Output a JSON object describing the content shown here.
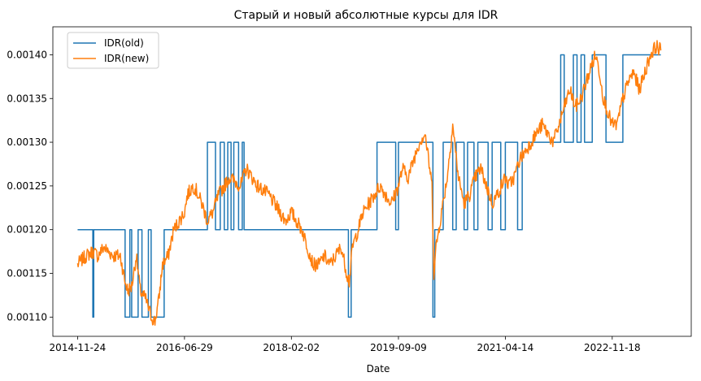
{
  "chart_data": {
    "type": "line",
    "title": "Старый и новый абсолютные курсы для IDR",
    "xlabel": "Date",
    "ylabel": "",
    "x_ticks": [
      "2014-11-24",
      "2016-06-29",
      "2018-02-02",
      "2019-09-09",
      "2021-04-14",
      "2022-11-18"
    ],
    "y_ticks": [
      "0.00110",
      "0.00115",
      "0.00120",
      "0.00125",
      "0.00130",
      "0.00135",
      "0.00140"
    ],
    "xlim": [
      "2014-07-12",
      "2024-01-23"
    ],
    "ylim": [
      0.001078,
      0.001432
    ],
    "legend_position": "upper left",
    "grid": false,
    "series": [
      {
        "name": "IDR(old)",
        "color": "#1f77b4",
        "step": true,
        "points": [
          [
            "2014-11-24",
            0.0012
          ],
          [
            "2015-02-15",
            0.0012
          ],
          [
            "2015-02-15",
            0.0011
          ],
          [
            "2015-02-20",
            0.0011
          ],
          [
            "2015-02-20",
            0.0012
          ],
          [
            "2015-08-10",
            0.0012
          ],
          [
            "2015-08-10",
            0.0011
          ],
          [
            "2015-09-05",
            0.0011
          ],
          [
            "2015-09-05",
            0.0012
          ],
          [
            "2015-09-15",
            0.0012
          ],
          [
            "2015-09-15",
            0.0011
          ],
          [
            "2015-10-20",
            0.0011
          ],
          [
            "2015-10-20",
            0.0012
          ],
          [
            "2015-11-10",
            0.0012
          ],
          [
            "2015-11-10",
            0.0011
          ],
          [
            "2015-12-15",
            0.0011
          ],
          [
            "2015-12-15",
            0.0012
          ],
          [
            "2015-12-30",
            0.0012
          ],
          [
            "2015-12-30",
            0.0011
          ],
          [
            "2016-03-10",
            0.0011
          ],
          [
            "2016-03-10",
            0.0012
          ],
          [
            "2016-11-01",
            0.0012
          ],
          [
            "2016-11-01",
            0.0013
          ],
          [
            "2016-12-15",
            0.0013
          ],
          [
            "2016-12-15",
            0.0012
          ],
          [
            "2017-01-10",
            0.0012
          ],
          [
            "2017-01-10",
            0.0013
          ],
          [
            "2017-02-01",
            0.0013
          ],
          [
            "2017-02-01",
            0.0012
          ],
          [
            "2017-02-20",
            0.0012
          ],
          [
            "2017-02-20",
            0.0013
          ],
          [
            "2017-03-10",
            0.0013
          ],
          [
            "2017-03-10",
            0.0012
          ],
          [
            "2017-03-25",
            0.0012
          ],
          [
            "2017-03-25",
            0.0013
          ],
          [
            "2017-04-20",
            0.0013
          ],
          [
            "2017-04-20",
            0.0012
          ],
          [
            "2017-05-10",
            0.0012
          ],
          [
            "2017-05-10",
            0.0013
          ],
          [
            "2017-05-20",
            0.0013
          ],
          [
            "2017-05-20",
            0.0012
          ],
          [
            "2018-12-10",
            0.0012
          ],
          [
            "2018-12-10",
            0.0011
          ],
          [
            "2018-12-25",
            0.0011
          ],
          [
            "2018-12-25",
            0.0012
          ],
          [
            "2019-05-15",
            0.0012
          ],
          [
            "2019-05-15",
            0.0013
          ],
          [
            "2019-08-25",
            0.0013
          ],
          [
            "2019-08-25",
            0.0012
          ],
          [
            "2019-09-09",
            0.0012
          ],
          [
            "2019-09-09",
            0.0013
          ],
          [
            "2020-03-15",
            0.0013
          ],
          [
            "2020-03-15",
            0.0011
          ],
          [
            "2020-03-25",
            0.0011
          ],
          [
            "2020-03-25",
            0.0012
          ],
          [
            "2020-05-10",
            0.0012
          ],
          [
            "2020-05-10",
            0.0013
          ],
          [
            "2020-07-01",
            0.0013
          ],
          [
            "2020-07-01",
            0.0012
          ],
          [
            "2020-07-20",
            0.0012
          ],
          [
            "2020-07-20",
            0.0013
          ],
          [
            "2020-09-01",
            0.0013
          ],
          [
            "2020-09-01",
            0.0012
          ],
          [
            "2020-09-20",
            0.0012
          ],
          [
            "2020-09-20",
            0.0013
          ],
          [
            "2020-10-25",
            0.0013
          ],
          [
            "2020-10-25",
            0.0012
          ],
          [
            "2020-11-15",
            0.0012
          ],
          [
            "2020-11-15",
            0.0013
          ],
          [
            "2021-01-10",
            0.0013
          ],
          [
            "2021-01-10",
            0.0012
          ],
          [
            "2021-02-01",
            0.0012
          ],
          [
            "2021-02-01",
            0.0013
          ],
          [
            "2021-03-20",
            0.0013
          ],
          [
            "2021-03-20",
            0.0012
          ],
          [
            "2021-04-14",
            0.0012
          ],
          [
            "2021-04-14",
            0.0013
          ],
          [
            "2021-06-20",
            0.0013
          ],
          [
            "2021-06-20",
            0.0012
          ],
          [
            "2021-07-15",
            0.0012
          ],
          [
            "2021-07-15",
            0.0013
          ],
          [
            "2022-02-10",
            0.0013
          ],
          [
            "2022-02-10",
            0.0014
          ],
          [
            "2022-03-01",
            0.0014
          ],
          [
            "2022-03-01",
            0.0013
          ],
          [
            "2022-04-20",
            0.0013
          ],
          [
            "2022-04-20",
            0.0014
          ],
          [
            "2022-05-10",
            0.0014
          ],
          [
            "2022-05-10",
            0.0013
          ],
          [
            "2022-06-01",
            0.0013
          ],
          [
            "2022-06-01",
            0.0014
          ],
          [
            "2022-06-20",
            0.0014
          ],
          [
            "2022-06-20",
            0.0013
          ],
          [
            "2022-08-01",
            0.0013
          ],
          [
            "2022-08-01",
            0.0014
          ],
          [
            "2022-10-15",
            0.0014
          ],
          [
            "2022-10-15",
            0.0013
          ],
          [
            "2023-01-15",
            0.0013
          ],
          [
            "2023-01-15",
            0.0014
          ],
          [
            "2023-08-10",
            0.0014
          ]
        ]
      },
      {
        "name": "IDR(new)",
        "color": "#ff7f0e",
        "step": false,
        "points": [
          [
            "2014-11-24",
            0.00116
          ],
          [
            "2014-12-15",
            0.001165
          ],
          [
            "2015-01-10",
            0.00117
          ],
          [
            "2015-02-15",
            0.001175
          ],
          [
            "2015-03-15",
            0.00117
          ],
          [
            "2015-04-15",
            0.00118
          ],
          [
            "2015-05-10",
            0.001175
          ],
          [
            "2015-06-10",
            0.00117
          ],
          [
            "2015-07-15",
            0.00117
          ],
          [
            "2015-08-10",
            0.00114
          ],
          [
            "2015-08-25",
            0.00113
          ],
          [
            "2015-09-15",
            0.001135
          ],
          [
            "2015-10-10",
            0.00117
          ],
          [
            "2015-11-01",
            0.00113
          ],
          [
            "2015-12-01",
            0.00112
          ],
          [
            "2016-01-01",
            0.0011
          ],
          [
            "2016-01-20",
            0.001095
          ],
          [
            "2016-02-10",
            0.00112
          ],
          [
            "2016-03-01",
            0.00116
          ],
          [
            "2016-04-01",
            0.00117
          ],
          [
            "2016-05-01",
            0.0012
          ],
          [
            "2016-06-01",
            0.00121
          ],
          [
            "2016-06-29",
            0.00122
          ],
          [
            "2016-07-15",
            0.00124
          ],
          [
            "2016-08-15",
            0.00125
          ],
          [
            "2016-09-01",
            0.001245
          ],
          [
            "2016-10-01",
            0.00123
          ],
          [
            "2016-11-01",
            0.00121
          ],
          [
            "2016-12-01",
            0.00122
          ],
          [
            "2017-01-01",
            0.00124
          ],
          [
            "2017-02-01",
            0.00125
          ],
          [
            "2017-03-01",
            0.00126
          ],
          [
            "2017-04-01",
            0.001255
          ],
          [
            "2017-05-01",
            0.00125
          ],
          [
            "2017-06-01",
            0.00127
          ],
          [
            "2017-07-01",
            0.00126
          ],
          [
            "2017-08-01",
            0.00125
          ],
          [
            "2017-09-01",
            0.001245
          ],
          [
            "2017-10-01",
            0.00124
          ],
          [
            "2017-11-01",
            0.00123
          ],
          [
            "2017-12-01",
            0.00122
          ],
          [
            "2018-01-01",
            0.00121
          ],
          [
            "2018-02-02",
            0.00122
          ],
          [
            "2018-03-01",
            0.00121
          ],
          [
            "2018-04-01",
            0.0012
          ],
          [
            "2018-05-01",
            0.00118
          ],
          [
            "2018-06-01",
            0.00116
          ],
          [
            "2018-07-01",
            0.00116
          ],
          [
            "2018-08-01",
            0.00117
          ],
          [
            "2018-09-01",
            0.00116
          ],
          [
            "2018-10-01",
            0.00117
          ],
          [
            "2018-11-01",
            0.00118
          ],
          [
            "2018-12-01",
            0.00115
          ],
          [
            "2018-12-15",
            0.00114
          ],
          [
            "2019-01-01",
            0.00118
          ],
          [
            "2019-02-01",
            0.0012
          ],
          [
            "2019-03-01",
            0.00122
          ],
          [
            "2019-04-01",
            0.00123
          ],
          [
            "2019-05-01",
            0.00124
          ],
          [
            "2019-06-01",
            0.00125
          ],
          [
            "2019-07-01",
            0.00124
          ],
          [
            "2019-08-01",
            0.00123
          ],
          [
            "2019-09-09",
            0.00125
          ],
          [
            "2019-10-01",
            0.00127
          ],
          [
            "2019-11-01",
            0.00126
          ],
          [
            "2019-12-01",
            0.00128
          ],
          [
            "2020-01-01",
            0.0013
          ],
          [
            "2020-02-01",
            0.00131
          ],
          [
            "2020-02-20",
            0.00128
          ],
          [
            "2020-03-10",
            0.00125
          ],
          [
            "2020-03-20",
            0.00115
          ],
          [
            "2020-04-01",
            0.00118
          ],
          [
            "2020-05-01",
            0.00122
          ],
          [
            "2020-06-01",
            0.00126
          ],
          [
            "2020-07-01",
            0.00132
          ],
          [
            "2020-08-01",
            0.00126
          ],
          [
            "2020-09-01",
            0.00123
          ],
          [
            "2020-10-01",
            0.00124
          ],
          [
            "2020-11-01",
            0.00126
          ],
          [
            "2020-12-01",
            0.00127
          ],
          [
            "2021-01-01",
            0.00125
          ],
          [
            "2021-02-01",
            0.00123
          ],
          [
            "2021-03-01",
            0.00124
          ],
          [
            "2021-04-14",
            0.00126
          ],
          [
            "2021-05-01",
            0.00125
          ],
          [
            "2021-06-01",
            0.00126
          ],
          [
            "2021-07-01",
            0.00128
          ],
          [
            "2021-08-01",
            0.00129
          ],
          [
            "2021-09-01",
            0.0013
          ],
          [
            "2021-10-01",
            0.00131
          ],
          [
            "2021-11-01",
            0.00132
          ],
          [
            "2021-12-01",
            0.00131
          ],
          [
            "2022-01-01",
            0.0013
          ],
          [
            "2022-02-01",
            0.00132
          ],
          [
            "2022-03-01",
            0.00134
          ],
          [
            "2022-04-01",
            0.00136
          ],
          [
            "2022-05-01",
            0.00134
          ],
          [
            "2022-06-01",
            0.00135
          ],
          [
            "2022-07-01",
            0.00137
          ],
          [
            "2022-08-01",
            0.00139
          ],
          [
            "2022-08-20",
            0.0014
          ],
          [
            "2022-09-10",
            0.00138
          ],
          [
            "2022-10-01",
            0.00135
          ],
          [
            "2022-11-01",
            0.00133
          ],
          [
            "2022-11-18",
            0.00132
          ],
          [
            "2022-12-15",
            0.00132
          ],
          [
            "2023-01-15",
            0.00135
          ],
          [
            "2023-02-15",
            0.00137
          ],
          [
            "2023-03-15",
            0.00138
          ],
          [
            "2023-04-15",
            0.00136
          ],
          [
            "2023-05-15",
            0.00138
          ],
          [
            "2023-06-15",
            0.0014
          ],
          [
            "2023-07-15",
            0.00141
          ],
          [
            "2023-08-10",
            0.001405
          ]
        ]
      }
    ]
  }
}
